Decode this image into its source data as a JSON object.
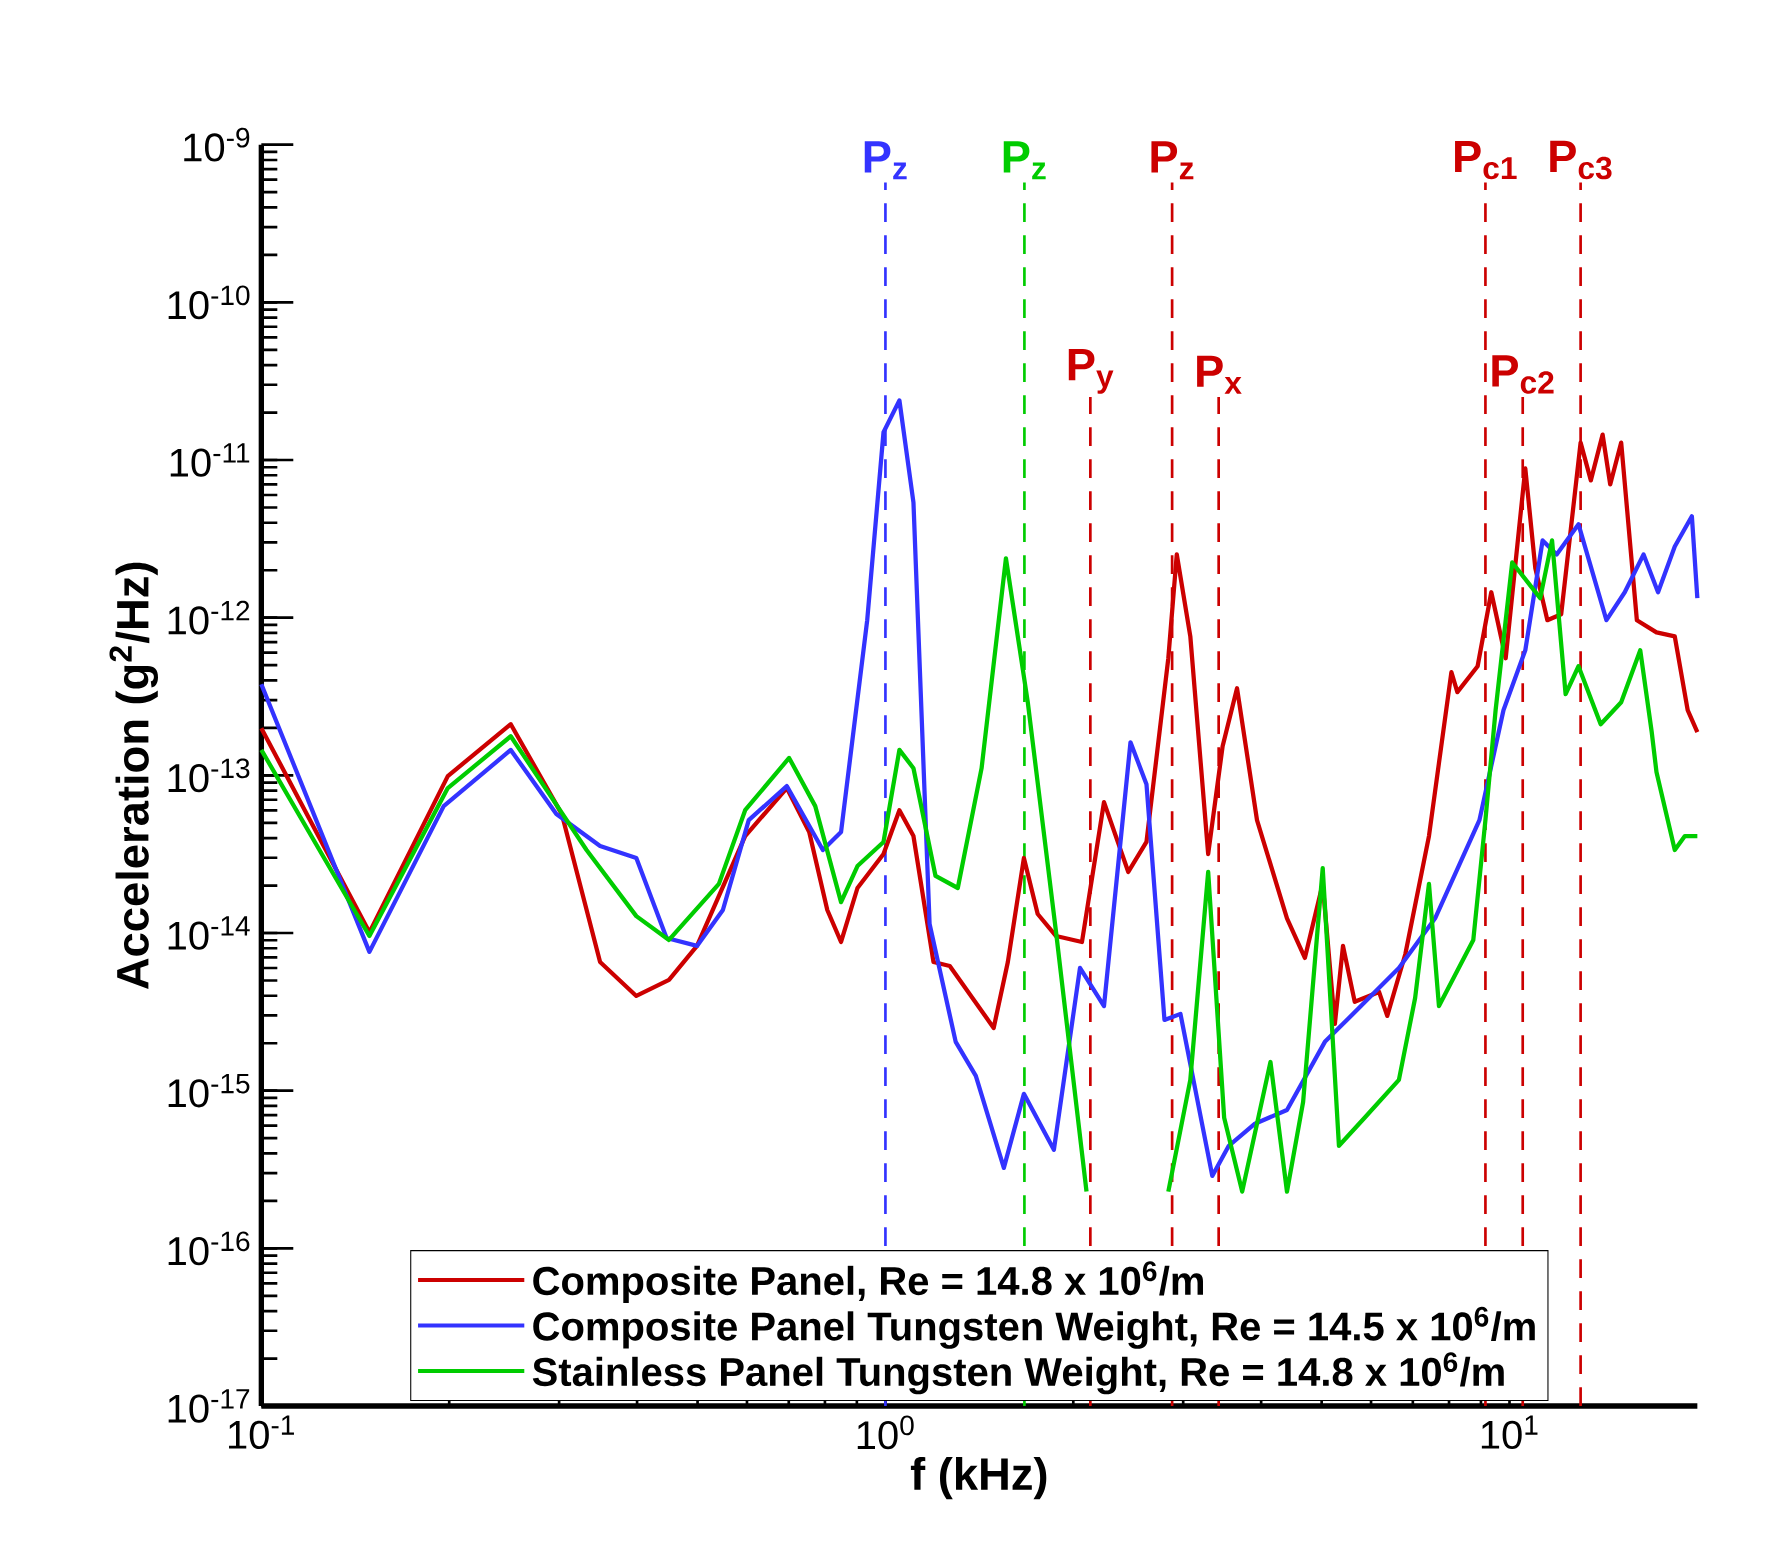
{
  "chart_data": {
    "type": "line",
    "xlabel": "f (kHz)",
    "ylabel": "Acceleration (g$^{2}$/Hz)",
    "log": "xy",
    "legend": "bottom",
    "grid": false,
    "xlim": [
      0.1,
      20
    ],
    "ylim": [
      1e-17,
      1e-09
    ],
    "xticks": [
      {
        "value": 0.1,
        "label": "10$^{-1}$"
      },
      {
        "value": 1,
        "label": "10$^{0}$"
      },
      {
        "value": 10,
        "label": "10$^{1}$"
      }
    ],
    "yticks": [
      {
        "value": 1e-17,
        "label": "10$^{-17}$"
      },
      {
        "value": 1e-16,
        "label": "10$^{-16}$"
      },
      {
        "value": 1e-15,
        "label": "10$^{-15}$"
      },
      {
        "value": 1e-14,
        "label": "10$^{-14}$"
      },
      {
        "value": 1e-13,
        "label": "10$^{-13}$"
      },
      {
        "value": 1e-12,
        "label": "10$^{-12}$"
      },
      {
        "value": 1e-11,
        "label": "10$^{-11}$"
      },
      {
        "value": 1e-10,
        "label": "10$^{-10}$"
      },
      {
        "value": 1e-09,
        "label": "10$^{-9}$"
      }
    ],
    "series": [
      {
        "name": "Composite Panel, Re = 14.8 x 10$^{6}$/m",
        "color": "#cc0000",
        "x": [
          0.1,
          0.149,
          0.199,
          0.251,
          0.303,
          0.349,
          0.399,
          0.45,
          0.499,
          0.596,
          0.695,
          0.755,
          0.807,
          0.849,
          0.902,
          0.993,
          1.053,
          1.109,
          1.194,
          1.268,
          1.491,
          1.571,
          1.667,
          1.754,
          1.877,
          2.065,
          2.24,
          2.45,
          2.62,
          2.84,
          2.93,
          3.08,
          3.29,
          3.47,
          3.66,
          3.94,
          4.4,
          4.7,
          5.02,
          5.25,
          5.41,
          5.65,
          6.18,
          6.37,
          6.81,
          7.43,
          8.07,
          8.25,
          8.89,
          9.35,
          9.86,
          10.6,
          11.0,
          11.5,
          12.1,
          13.0,
          13.5,
          14.1,
          14.5,
          15.1,
          16.0,
          17.2,
          18.4,
          19.3,
          20
        ],
        "values": [
          1.99e-13,
          1.01e-14,
          9.89e-14,
          2.11e-13,
          5.68e-14,
          6.55e-15,
          3.99e-15,
          5.04e-15,
          8.28e-15,
          4.12e-14,
          8.3e-14,
          4.37e-14,
          1.4e-14,
          8.77e-15,
          1.93e-14,
          3.17e-14,
          6.01e-14,
          4.12e-14,
          6.55e-15,
          6.18e-15,
          2.5e-15,
          6.55e-15,
          2.99e-14,
          1.32e-14,
          9.57e-15,
          8.77e-15,
          6.76e-14,
          2.44e-14,
          3.78e-14,
          5.53e-13,
          2.52e-12,
          7.62e-13,
          3.17e-14,
          1.53e-13,
          3.57e-13,
          5.2e-14,
          1.24e-14,
          6.95e-15,
          2.05e-14,
          2.65e-15,
          8.28e-15,
          3.66e-15,
          4.23e-15,
          2.98e-15,
          7.36e-15,
          4.12e-14,
          4.51e-13,
          3.37e-13,
          4.92e-13,
          1.45e-12,
          5.53e-13,
          8.85e-12,
          2.06e-12,
          9.64e-13,
          1.05e-12,
          1.29e-11,
          7.43e-12,
          1.45e-11,
          7e-12,
          1.29e-11,
          9.64e-13,
          8.07e-13,
          7.62e-13,
          2.59e-13,
          1.88e-13
        ]
      },
      {
        "name": "Composite Panel Tungsten Weight, Re = 14.5 x 10$^{6}$/m",
        "color": "#3333ff",
        "x": [
          0.1,
          0.149,
          0.196,
          0.251,
          0.297,
          0.349,
          0.399,
          0.446,
          0.499,
          0.549,
          0.604,
          0.695,
          0.794,
          0.849,
          0.935,
          0.993,
          1.053,
          1.109,
          1.177,
          1.296,
          1.396,
          1.548,
          1.667,
          1.862,
          2.05,
          2.24,
          2.47,
          2.62,
          2.8,
          2.97,
          3.34,
          3.55,
          3.91,
          4.4,
          5.06,
          5.78,
          6.65,
          7.6,
          8.95,
          9.78,
          10.6,
          11.3,
          11.9,
          12.9,
          14.3,
          15.3,
          16.4,
          17.3,
          18.4,
          19.6,
          20
        ],
        "values": [
          3.78e-13,
          7.59e-15,
          6.38e-14,
          1.45e-13,
          5.68e-14,
          3.56e-14,
          2.99e-14,
          9.29e-15,
          8.28e-15,
          1.4e-14,
          5.2e-14,
          8.55e-14,
          3.36e-14,
          4.37e-14,
          9.64e-13,
          1.5e-11,
          2.39e-11,
          5.38e-12,
          1.14e-14,
          2.04e-15,
          1.24e-15,
          3.24e-16,
          9.55e-16,
          4.22e-16,
          6e-15,
          3.44e-15,
          1.62e-13,
          8.79e-14,
          2.81e-15,
          3.07e-15,
          2.88e-16,
          4.47e-16,
          6.17e-16,
          7.55e-16,
          2.04e-15,
          3.44e-15,
          6e-15,
          1.24e-14,
          5.2e-14,
          2.59e-13,
          6.21e-13,
          3.09e-12,
          2.52e-12,
          3.91e-12,
          9.64e-13,
          1.45e-12,
          2.52e-12,
          1.45e-12,
          2.83e-12,
          4.4e-12,
          1.33e-12
        ]
      },
      {
        "name": "Stainless Panel Tungsten Weight, Re = 14.8 x 10$^{6}$/m",
        "color": "#00cc00",
        "x": [
          0.1,
          0.149,
          0.199,
          0.251,
          0.288,
          0.332,
          0.399,
          0.45,
          0.541,
          0.596,
          0.701,
          0.772,
          0.849,
          0.902,
          0.993,
          1.053,
          1.109,
          1.203,
          1.306,
          1.426,
          1.56,
          1.691,
          1.877,
          2.1,
          2.5,
          2.84,
          3.08,
          3.29,
          3.49,
          3.73,
          4.14,
          4.4,
          4.67,
          5.02,
          5.33,
          5.86,
          6.65,
          7.06,
          7.43,
          7.71,
          8.75,
          9.15,
          9.5,
          10.1,
          11.2,
          11.7,
          12.3,
          12.9,
          14.0,
          15.1,
          16.2,
          16.9,
          17.2,
          18.4,
          19.1,
          20
        ],
        "values": [
          1.45e-13,
          9.57e-15,
          8.3e-14,
          1.77e-13,
          7.83e-14,
          3.36e-14,
          1.28e-14,
          9.04e-15,
          2.05e-14,
          6.01e-14,
          1.29e-13,
          6.38e-14,
          1.57e-14,
          2.66e-14,
          3.78e-14,
          1.45e-13,
          1.11e-13,
          2.3e-14,
          1.93e-14,
          1.11e-13,
          2.38e-12,
          2.91e-13,
          1.01e-14,
          2.29e-16,
          null,
          2.29e-16,
          1.17e-15,
          2.44e-14,
          6.73e-16,
          2.29e-16,
          1.52e-15,
          2.29e-16,
          8.49e-16,
          2.58e-14,
          4.47e-16,
          6.73e-16,
          1.17e-15,
          3.87e-15,
          2.05e-14,
          3.44e-15,
          9.04e-15,
          5.2e-14,
          2.59e-13,
          2.24e-12,
          1.33e-12,
          3.09e-12,
          3.27e-13,
          4.92e-13,
          2.11e-13,
          2.91e-13,
          6.21e-13,
          1.88e-13,
          1.05e-13,
          3.36e-14,
          4.12e-14,
          4.12e-14
        ]
      }
    ],
    "ref_lines": [
      {
        "axis": "x",
        "value": 1.0,
        "label": "P$_{z}$",
        "color": "#3333ff",
        "line_style": "dashed"
      },
      {
        "axis": "x",
        "value": 1.67,
        "label": "P$_{z}$",
        "color": "#00cc00",
        "line_style": "dashed"
      },
      {
        "axis": "x",
        "value": 2.13,
        "label": "P$_{y}$",
        "color": "#cc0000",
        "line_style": "dashed"
      },
      {
        "axis": "x",
        "value": 2.88,
        "label": "P$_{z}$",
        "color": "#cc0000",
        "line_style": "dashed"
      },
      {
        "axis": "x",
        "value": 3.42,
        "label": "P$_{x}$",
        "color": "#cc0000",
        "line_style": "dashed"
      },
      {
        "axis": "x",
        "value": 9.15,
        "label": "P$_{c1}$",
        "color": "#cc0000",
        "line_style": "dashed"
      },
      {
        "axis": "x",
        "value": 10.5,
        "label": "P$_{c2}$",
        "color": "#cc0000",
        "line_style": "dashed"
      },
      {
        "axis": "x",
        "value": 13.0,
        "label": "P$_{c3}$",
        "color": "#cc0000",
        "line_style": "dashed"
      }
    ]
  }
}
